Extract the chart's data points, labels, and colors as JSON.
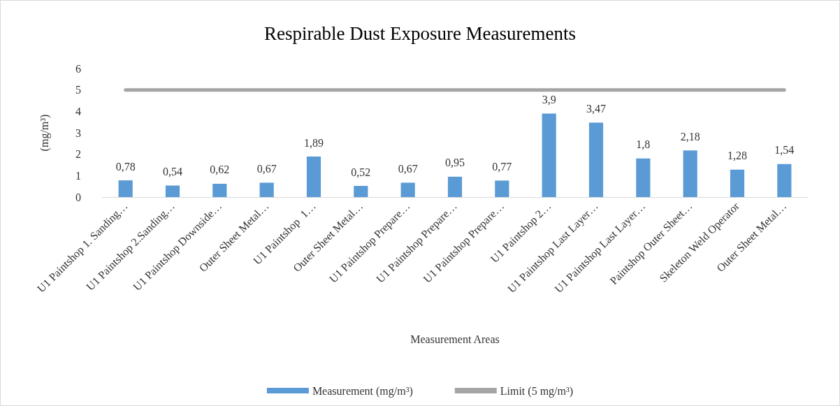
{
  "chart_data": {
    "type": "bar",
    "title": "Respirable Dust Exposure Measurements",
    "xlabel": "Measurement Areas",
    "ylabel": "(mg/m³)",
    "categories": [
      "U1 Paintshop 1. Sanding…",
      "U1 Paintshop 2.Sanding…",
      "U1 Paintshop Downside…",
      "Outer Sheet Metal…",
      "U1 Paintshop  1…",
      "Outer Sheet Metal…",
      "U1 Paintshop Prepare…",
      "U1 Paintshop Prepare…",
      "U1 Paintshop Prepare…",
      "U1 Paintshop 2…",
      "U1 Paintshop Last Layer…",
      "U1 Paintshop Last Layer…",
      "Paintshop Outer Sheet…",
      "Skeleton Weld Operator",
      "Outer Sheet Metal…"
    ],
    "series": [
      {
        "name": "Measurement (mg/m³)",
        "color": "#5b9bd5",
        "values": [
          0.78,
          0.54,
          0.62,
          0.67,
          1.89,
          0.52,
          0.67,
          0.95,
          0.77,
          3.9,
          3.47,
          1.8,
          2.18,
          1.28,
          1.54
        ],
        "value_labels": [
          "0,78",
          "0,54",
          "0,62",
          "0,67",
          "1,89",
          "0,52",
          "0,67",
          "0,95",
          "0,77",
          "3,9",
          "3,47",
          "1,8",
          "2,18",
          "1,28",
          "1,54"
        ]
      },
      {
        "name": "Limit (5 mg/m³)",
        "type": "line",
        "color": "#a5a5a5",
        "values": [
          5,
          5,
          5,
          5,
          5,
          5,
          5,
          5,
          5,
          5,
          5,
          5,
          5,
          5,
          5
        ]
      }
    ],
    "ylim": [
      0,
      6
    ],
    "yticks": [
      0,
      1,
      2,
      3,
      4,
      5,
      6
    ],
    "grid": false,
    "legend": "bottom",
    "marker": "none",
    "line_style": "solid"
  }
}
